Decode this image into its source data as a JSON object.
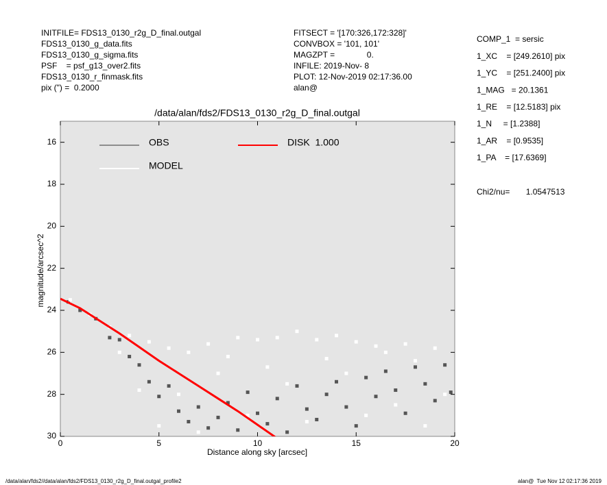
{
  "chart_data": {
    "type": "scatter",
    "title": "/data/alan/fds2/FDS13_0130_r2g_D_final.outgal",
    "xlabel": "Distance along sky [arcsec]",
    "ylabel": "magnitude/arcsec^2",
    "header_left": [
      "INITFILE= FDS13_0130_r2g_D_final.outgal",
      "FDS13_0130_g_data.fits",
      "FDS13_0130_g_sigma.fits",
      "PSF    = psf_g13_over2.fits",
      "FDS13_0130_r_finmask.fits",
      "pix (\") =  0.2000"
    ],
    "header_middle": [
      "FITSECT = '[170:326,172:328]'",
      "CONVBOX = '101, 101'",
      "MAGZPT =              0.",
      "INFILE: 2019-Nov- 8",
      "PLOT: 12-Nov-2019 02:17:36.00",
      "alan@"
    ],
    "header_right": [
      "COMP_1  = sersic",
      "1_XC    = [249.2610] pix",
      "1_YC    = [251.2400] pix",
      "1_MAG   = 20.1361",
      "1_RE    = [12.5183] pix",
      "1_N     = [1.2388]",
      "1_AR    = [0.9535]",
      "1_PA    = [17.6369]"
    ],
    "chi2": "Chi2/nu=       1.0547513",
    "footer_left": "/data/alan/fds2//data/alan/fds2/FDS13_0130_r2g_D_final.outgal_profile2",
    "footer_right": "alan@  Tue Nov 12 02:17:36 2019",
    "xlim": [
      0,
      20
    ],
    "ylim": [
      30,
      15
    ],
    "xticks": [
      0,
      5,
      10,
      15,
      20
    ],
    "yticks": [
      16,
      18,
      20,
      22,
      24,
      26,
      28,
      30
    ],
    "plot_background": "#e5e5e5",
    "series": [
      {
        "name": "OBS",
        "color": "#555555",
        "legend_color": "#8c8c8c",
        "kind": "points",
        "x": [
          0.4,
          1,
          1.8,
          2.5,
          3,
          3.5,
          4,
          4.5,
          5,
          5.5,
          6,
          6.5,
          7,
          7.5,
          8,
          8.5,
          9,
          9.5,
          10,
          10.5,
          11,
          11.5,
          12,
          12.5,
          13,
          13.5,
          14,
          14.5,
          15,
          15.5,
          16,
          16.5,
          17,
          17.5,
          18,
          18.5,
          19,
          19.5,
          19.8
        ],
        "values": [
          23.6,
          24.0,
          24.4,
          25.3,
          25.4,
          26.2,
          26.6,
          27.4,
          28.1,
          27.6,
          28.8,
          29.3,
          28.6,
          29.6,
          29.1,
          28.4,
          29.7,
          27.9,
          28.9,
          29.4,
          28.2,
          29.8,
          27.6,
          28.7,
          29.2,
          28.0,
          27.4,
          28.6,
          29.5,
          27.2,
          28.1,
          26.9,
          27.8,
          28.9,
          26.7,
          27.5,
          28.3,
          26.6,
          27.9
        ]
      },
      {
        "name": "MODEL",
        "color": "#ffffff",
        "legend_color": "#ffffff",
        "kind": "points",
        "x": [
          0.5,
          1.5,
          2.5,
          3,
          3.5,
          4,
          4.5,
          5,
          5.5,
          6,
          6.5,
          7,
          7.5,
          8,
          8.5,
          9,
          9.5,
          10,
          10.5,
          11,
          11.5,
          12,
          12.5,
          13,
          13.5,
          14,
          14.5,
          15,
          15.5,
          16,
          16.5,
          17,
          17.5,
          18,
          18.5,
          19,
          19.5
        ],
        "values": [
          23.5,
          24.2,
          24.8,
          26.0,
          25.2,
          27.8,
          25.5,
          29.5,
          25.8,
          28.0,
          26.0,
          29.8,
          25.6,
          27.0,
          26.2,
          25.3,
          29.0,
          25.4,
          26.7,
          25.3,
          27.5,
          25.0,
          29.3,
          25.4,
          26.3,
          25.2,
          27.0,
          25.5,
          29.0,
          25.7,
          26.0,
          28.5,
          25.6,
          26.4,
          29.5,
          25.8,
          28.0
        ]
      },
      {
        "name": "DISK  1.000",
        "color": "#ff0000",
        "legend_color": "#ff0000",
        "kind": "line",
        "x": [
          0,
          1,
          2,
          3,
          4,
          5,
          6,
          7,
          8,
          9,
          10,
          11
        ],
        "values": [
          23.45,
          23.9,
          24.5,
          25.1,
          25.75,
          26.4,
          27.0,
          27.6,
          28.2,
          28.8,
          29.45,
          30.1
        ]
      }
    ]
  }
}
